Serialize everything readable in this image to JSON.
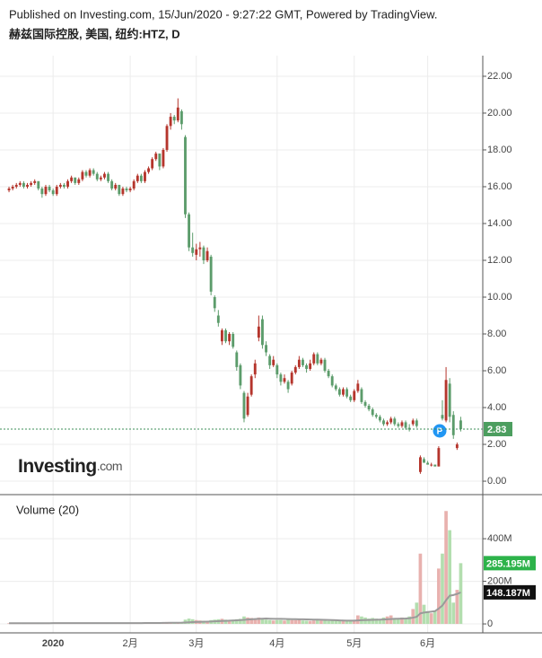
{
  "header": {
    "published": "Published on Investing.com, 15/Jun/2020 - 9:27:22 GMT, Powered by TradingView.",
    "title": "赫兹国际控股, 美国, 纽约:HTZ, D"
  },
  "watermark": "Investing",
  "watermark_suffix": ".com",
  "marker_label": "P",
  "chart_data": {
    "type": "candlestick",
    "categories": [
      null,
      null,
      null,
      null,
      null,
      null,
      null,
      null,
      null,
      null,
      null,
      null,
      "2020",
      null,
      null,
      null,
      null,
      null,
      null,
      null,
      null,
      null,
      null,
      null,
      null,
      null,
      null,
      null,
      null,
      null,
      null,
      null,
      null,
      "2月",
      null,
      null,
      null,
      null,
      null,
      null,
      null,
      null,
      null,
      null,
      null,
      null,
      null,
      null,
      null,
      null,
      null,
      "3月",
      null,
      null,
      null,
      null,
      null,
      null,
      null,
      null,
      null,
      null,
      null,
      null,
      null,
      null,
      null,
      null,
      null,
      null,
      null,
      null,
      null,
      "4月",
      null,
      null,
      null,
      null,
      null,
      null,
      null,
      null,
      null,
      null,
      null,
      null,
      null,
      null,
      null,
      null,
      null,
      null,
      null,
      null,
      "5月",
      null,
      null,
      null,
      null,
      null,
      null,
      null,
      null,
      null,
      null,
      null,
      null,
      null,
      null,
      null,
      null,
      null,
      null,
      null,
      "6月",
      null,
      null,
      null,
      null,
      null,
      null,
      null,
      null
    ],
    "candles": [
      [
        15.8,
        16.0,
        15.7,
        15.9
      ],
      [
        15.9,
        16.1,
        15.8,
        16.0
      ],
      [
        16.0,
        16.2,
        15.9,
        16.1
      ],
      [
        16.1,
        16.3,
        16.0,
        16.2
      ],
      [
        16.2,
        16.3,
        15.9,
        16.0
      ],
      [
        16.0,
        16.2,
        15.9,
        16.1
      ],
      [
        16.1,
        16.3,
        16.0,
        16.2
      ],
      [
        16.2,
        16.4,
        16.1,
        16.3
      ],
      [
        16.3,
        16.3,
        15.8,
        15.9
      ],
      [
        15.9,
        16.0,
        15.4,
        15.6
      ],
      [
        15.6,
        16.1,
        15.5,
        16.0
      ],
      [
        16.0,
        16.1,
        15.7,
        15.8
      ],
      [
        15.8,
        15.9,
        15.5,
        15.6
      ],
      [
        15.6,
        16.1,
        15.5,
        16.0
      ],
      [
        16.0,
        16.2,
        15.9,
        16.1
      ],
      [
        16.1,
        16.2,
        15.9,
        16.0
      ],
      [
        16.0,
        16.4,
        15.9,
        16.3
      ],
      [
        16.3,
        16.6,
        16.2,
        16.5
      ],
      [
        16.5,
        16.5,
        16.1,
        16.2
      ],
      [
        16.2,
        16.5,
        16.1,
        16.4
      ],
      [
        16.4,
        16.9,
        16.3,
        16.8
      ],
      [
        16.8,
        16.9,
        16.5,
        16.6
      ],
      [
        16.6,
        17.0,
        16.5,
        16.9
      ],
      [
        16.9,
        17.0,
        16.6,
        16.7
      ],
      [
        16.7,
        16.8,
        16.3,
        16.4
      ],
      [
        16.4,
        16.6,
        16.3,
        16.5
      ],
      [
        16.5,
        16.8,
        16.4,
        16.7
      ],
      [
        16.7,
        16.8,
        16.2,
        16.3
      ],
      [
        16.3,
        16.4,
        15.8,
        15.9
      ],
      [
        15.9,
        16.2,
        15.8,
        16.1
      ],
      [
        16.1,
        16.1,
        15.5,
        15.6
      ],
      [
        15.6,
        16.0,
        15.5,
        15.9
      ],
      [
        15.9,
        16.0,
        15.7,
        15.8
      ],
      [
        15.8,
        16.0,
        15.7,
        15.9
      ],
      [
        15.9,
        16.4,
        15.8,
        16.3
      ],
      [
        16.3,
        16.7,
        16.2,
        16.6
      ],
      [
        16.6,
        16.7,
        16.2,
        16.3
      ],
      [
        16.3,
        16.9,
        16.2,
        16.8
      ],
      [
        16.8,
        17.1,
        16.7,
        17.0
      ],
      [
        17.0,
        17.6,
        16.9,
        17.5
      ],
      [
        17.5,
        17.9,
        17.4,
        17.8
      ],
      [
        17.8,
        17.8,
        16.9,
        17.1
      ],
      [
        17.1,
        18.1,
        17.0,
        18.0
      ],
      [
        18.0,
        19.4,
        17.9,
        19.3
      ],
      [
        19.3,
        20.0,
        19.1,
        19.8
      ],
      [
        19.8,
        19.9,
        19.4,
        19.6
      ],
      [
        19.6,
        20.8,
        19.5,
        20.3
      ],
      [
        20.1,
        20.2,
        19.1,
        19.4
      ],
      [
        18.7,
        18.8,
        14.3,
        14.5
      ],
      [
        14.5,
        14.6,
        12.5,
        12.7
      ],
      [
        12.7,
        13.5,
        12.2,
        12.4
      ],
      [
        12.3,
        12.9,
        12.0,
        12.6
      ],
      [
        12.6,
        13.0,
        12.2,
        12.7
      ],
      [
        12.7,
        12.8,
        11.8,
        12.0
      ],
      [
        12.0,
        12.7,
        11.9,
        12.5
      ],
      [
        12.2,
        12.3,
        10.1,
        10.3
      ],
      [
        10.0,
        10.1,
        9.2,
        9.4
      ],
      [
        9.0,
        9.3,
        8.4,
        8.6
      ],
      [
        7.6,
        8.3,
        7.4,
        8.2
      ],
      [
        8.2,
        8.3,
        7.5,
        7.6
      ],
      [
        7.6,
        8.1,
        7.4,
        8.0
      ],
      [
        8.0,
        8.1,
        7.2,
        7.3
      ],
      [
        7.0,
        7.1,
        6.0,
        6.2
      ],
      [
        6.3,
        6.4,
        5.0,
        5.2
      ],
      [
        4.8,
        4.9,
        3.2,
        3.4
      ],
      [
        3.6,
        4.8,
        3.5,
        4.6
      ],
      [
        4.7,
        5.8,
        4.6,
        5.7
      ],
      [
        5.8,
        6.6,
        5.6,
        6.4
      ],
      [
        7.8,
        9.0,
        7.6,
        8.4
      ],
      [
        8.8,
        9.0,
        7.2,
        7.4
      ],
      [
        7.4,
        7.6,
        6.8,
        7.0
      ],
      [
        6.8,
        6.9,
        6.1,
        6.3
      ],
      [
        6.3,
        6.8,
        6.2,
        6.6
      ],
      [
        6.3,
        6.4,
        5.6,
        5.8
      ],
      [
        5.8,
        5.9,
        5.2,
        5.4
      ],
      [
        5.4,
        5.8,
        5.3,
        5.6
      ],
      [
        5.4,
        5.5,
        4.8,
        5.0
      ],
      [
        5.3,
        6.0,
        5.2,
        5.9
      ],
      [
        5.9,
        6.3,
        5.8,
        6.2
      ],
      [
        6.2,
        6.8,
        6.1,
        6.6
      ],
      [
        6.6,
        6.7,
        6.2,
        6.3
      ],
      [
        6.3,
        6.4,
        5.9,
        6.1
      ],
      [
        6.1,
        6.6,
        6.0,
        6.4
      ],
      [
        6.4,
        7.0,
        6.3,
        6.9
      ],
      [
        6.9,
        7.0,
        6.3,
        6.4
      ],
      [
        6.4,
        6.7,
        6.3,
        6.6
      ],
      [
        6.6,
        6.7,
        5.9,
        6.0
      ],
      [
        6.0,
        6.1,
        5.6,
        5.7
      ],
      [
        5.7,
        5.8,
        5.1,
        5.2
      ],
      [
        5.2,
        5.3,
        4.9,
        5.0
      ],
      [
        5.0,
        5.1,
        4.6,
        4.7
      ],
      [
        4.7,
        5.1,
        4.6,
        5.0
      ],
      [
        5.0,
        5.1,
        4.5,
        4.6
      ],
      [
        4.6,
        4.7,
        4.3,
        4.4
      ],
      [
        4.4,
        5.0,
        4.3,
        4.9
      ],
      [
        4.9,
        5.5,
        4.8,
        5.3
      ],
      [
        5.0,
        5.1,
        4.2,
        4.3
      ],
      [
        4.3,
        4.4,
        4.0,
        4.1
      ],
      [
        4.1,
        4.2,
        3.8,
        3.9
      ],
      [
        3.9,
        4.0,
        3.5,
        3.6
      ],
      [
        3.6,
        3.7,
        3.4,
        3.5
      ],
      [
        3.5,
        3.6,
        3.2,
        3.3
      ],
      [
        3.3,
        3.4,
        3.0,
        3.1
      ],
      [
        3.1,
        3.3,
        3.0,
        3.2
      ],
      [
        3.2,
        3.5,
        3.1,
        3.4
      ],
      [
        3.4,
        3.5,
        3.0,
        3.1
      ],
      [
        3.1,
        3.2,
        2.9,
        3.0
      ],
      [
        3.0,
        3.3,
        2.9,
        3.2
      ],
      [
        3.2,
        3.3,
        2.8,
        2.9
      ],
      [
        2.9,
        3.1,
        2.7,
        2.8
      ],
      [
        3.1,
        3.4,
        3.0,
        3.3
      ],
      [
        3.3,
        3.4,
        2.9,
        3.0
      ],
      [
        0.5,
        1.4,
        0.4,
        1.3
      ],
      [
        1.2,
        1.3,
        1.0,
        1.0
      ],
      [
        1.0,
        1.1,
        0.9,
        0.9
      ],
      [
        0.9,
        1.0,
        0.8,
        0.9
      ],
      [
        0.9,
        0.9,
        0.8,
        0.8
      ],
      [
        0.8,
        1.9,
        0.8,
        1.8
      ],
      [
        3.6,
        4.4,
        3.3,
        3.4
      ],
      [
        3.3,
        6.2,
        3.2,
        5.5
      ],
      [
        5.3,
        5.6,
        3.2,
        3.5
      ],
      [
        3.6,
        3.8,
        2.3,
        2.5
      ],
      [
        1.8,
        2.1,
        1.7,
        2.0
      ],
      [
        3.3,
        3.5,
        2.7,
        2.83
      ]
    ],
    "up_color": "#b5352c",
    "down_color": "#5c9c6b",
    "ylim": [
      -0.73,
      23.12
    ],
    "yticks": [
      {
        "value": 0,
        "label": "0.00"
      },
      {
        "value": 2,
        "label": "2.00"
      },
      {
        "value": 4,
        "label": "4.00"
      },
      {
        "value": 6,
        "label": "6.00"
      },
      {
        "value": 8,
        "label": "8.00"
      },
      {
        "value": 10,
        "label": "10.00"
      },
      {
        "value": 12,
        "label": "12.00"
      },
      {
        "value": 14,
        "label": "14.00"
      },
      {
        "value": 16,
        "label": "16.00"
      },
      {
        "value": 18,
        "label": "18.00"
      },
      {
        "value": 20,
        "label": "20.00"
      },
      {
        "value": 22,
        "label": "22.00"
      }
    ],
    "last_price": 2.83,
    "grid": true,
    "volume": {
      "name": "Volume (20)",
      "values": [
        3,
        3,
        4,
        3,
        3,
        5,
        2,
        2,
        3,
        4,
        4,
        3,
        4,
        4,
        3,
        3,
        4,
        4,
        3,
        3,
        5,
        4,
        4,
        3,
        4,
        3,
        3,
        4,
        5,
        4,
        5,
        4,
        3,
        4,
        4,
        5,
        4,
        5,
        5,
        6,
        6,
        6,
        6,
        9,
        8,
        6,
        8,
        7,
        20,
        25,
        22,
        18,
        16,
        15,
        14,
        18,
        20,
        22,
        24,
        20,
        18,
        20,
        22,
        24,
        35,
        30,
        28,
        26,
        30,
        24,
        20,
        18,
        16,
        18,
        18,
        16,
        20,
        18,
        18,
        20,
        16,
        15,
        14,
        16,
        18,
        16,
        15,
        14,
        16,
        15,
        14,
        13,
        14,
        15,
        16,
        40,
        35,
        30,
        25,
        28,
        25,
        22,
        30,
        35,
        40,
        28,
        26,
        30,
        28,
        35,
        70,
        100,
        330,
        90,
        60,
        50,
        60,
        260,
        330,
        530,
        440,
        100,
        160,
        285.195
      ],
      "ma": [
        3.5,
        3.5,
        3.5,
        3.5,
        3.5,
        3.5,
        3.5,
        3.5,
        3.5,
        3.5,
        3.5,
        3.5,
        3.7,
        3.7,
        3.7,
        3.7,
        3.7,
        3.7,
        3.7,
        3.7,
        3.7,
        3.7,
        3.7,
        3.7,
        3.7,
        3.7,
        3.7,
        3.7,
        3.7,
        3.7,
        3.7,
        3.7,
        3.7,
        4,
        4,
        4,
        4,
        4.2,
        4.3,
        4.4,
        4.5,
        4.6,
        4.8,
        5.1,
        5.3,
        5.4,
        5.6,
        5.8,
        6.5,
        7.5,
        8.4,
        9.1,
        9.7,
        10.2,
        10.7,
        11.4,
        12.1,
        13,
        14,
        14.6,
        15.2,
        16,
        16.8,
        17.8,
        19.3,
        20.5,
        21.6,
        22.6,
        23.8,
        24.6,
        25.3,
        24.5,
        24.0,
        23.8,
        23.6,
        23.1,
        22.8,
        22.5,
        22.3,
        22.0,
        21.6,
        21.1,
        20.5,
        20.2,
        20.0,
        19.6,
        19.2,
        18.4,
        17.8,
        17.3,
        16.7,
        16.1,
        15.6,
        15.4,
        15.3,
        16.4,
        17.3,
        18.0,
        18.5,
        19.2,
        19.7,
        20.1,
        20.8,
        21.8,
        23.0,
        23.6,
        24.2,
        25.0,
        25.6,
        26.6,
        29.4,
        33.6,
        49.5,
        53.2,
        55.6,
        57.6,
        59.8,
        71.8,
        86.4,
        111.4,
        132.5,
        135.6,
        140.8,
        148.187
      ],
      "up_color": "#e8b1ae",
      "down_color": "#b3deaf",
      "ma_color": "#9a9a9a",
      "ylim": [
        -42,
        607
      ],
      "yticks": [
        0,
        {
          "value": 200,
          "label": "200M"
        },
        {
          "value": 400,
          "label": "400M"
        }
      ],
      "value_label": "285.195M",
      "ma_label": "148.187M"
    }
  }
}
